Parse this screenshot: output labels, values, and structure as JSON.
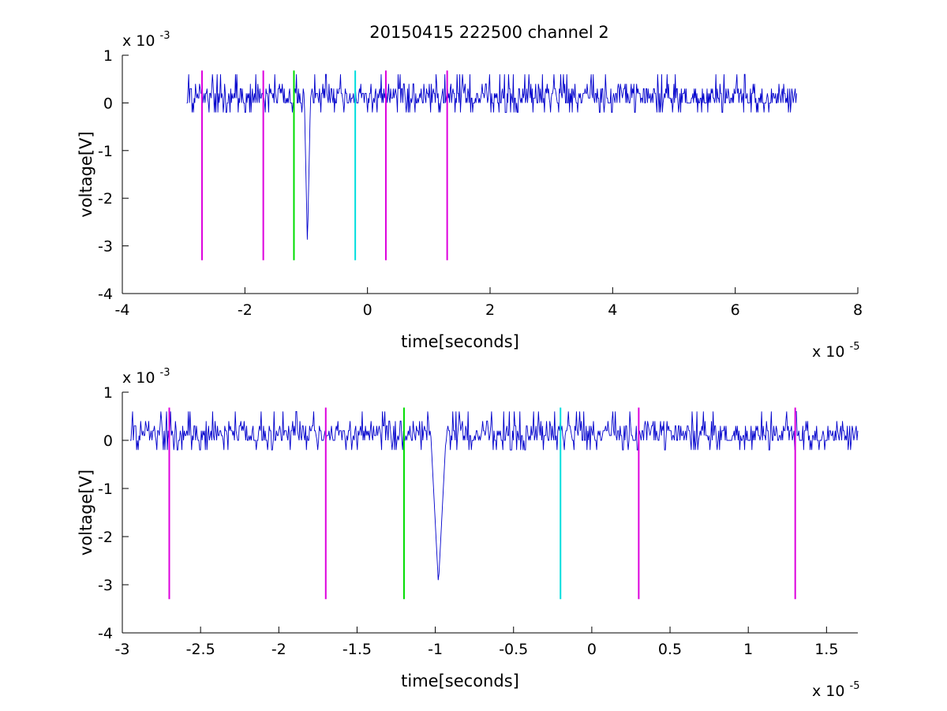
{
  "figure": {
    "title": "20150415 222500 channel 2"
  },
  "chart_data": [
    {
      "type": "line",
      "title": "20150415 222500 channel 2",
      "xlabel": "time[seconds]",
      "ylabel": "voltage[V]",
      "xlim": [
        -4e-05,
        8e-05
      ],
      "ylim": [
        -0.004,
        0.001
      ],
      "x_ticks": [
        -4,
        -2,
        0,
        2,
        4,
        6,
        8
      ],
      "y_ticks": [
        -4,
        -3,
        -2,
        -1,
        0,
        1
      ],
      "x_exponent": {
        "base": "x 10",
        "power": "-5"
      },
      "y_exponent": {
        "base": "x 10",
        "power": "-3"
      },
      "grid": false,
      "signal": {
        "color": "#0000cc",
        "t_start": -2.95e-05,
        "t_end": 7e-05,
        "baseline": 0.0001,
        "noise_amplitude": 0.0003,
        "spike": {
          "time": -9.8e-06,
          "min_value": -0.003
        }
      },
      "markers": [
        {
          "time": -2.7e-05,
          "color": "#dd00dd",
          "ymin": -0.0033,
          "ymax": 0.00068
        },
        {
          "time": -1.7e-05,
          "color": "#dd00dd",
          "ymin": -0.0033,
          "ymax": 0.00068
        },
        {
          "time": -1.2e-05,
          "color": "#00dd00",
          "ymin": -0.0033,
          "ymax": 0.00068
        },
        {
          "time": -2e-06,
          "color": "#00dddd",
          "ymin": -0.0033,
          "ymax": 0.00068
        },
        {
          "time": 3e-06,
          "color": "#dd00dd",
          "ymin": -0.0033,
          "ymax": 0.00068
        },
        {
          "time": 1.3e-05,
          "color": "#dd00dd",
          "ymin": -0.0033,
          "ymax": 0.00068
        }
      ]
    },
    {
      "type": "line",
      "title": "",
      "xlabel": "time[seconds]",
      "ylabel": "voltage[V]",
      "xlim": [
        -3e-05,
        1.7e-05
      ],
      "ylim": [
        -0.004,
        0.001
      ],
      "x_ticks": [
        -3,
        -2.5,
        -2,
        -1.5,
        -1,
        -0.5,
        0,
        0.5,
        1,
        1.5
      ],
      "y_ticks": [
        -4,
        -3,
        -2,
        -1,
        0,
        1
      ],
      "x_exponent": {
        "base": "x 10",
        "power": "-5"
      },
      "y_exponent": {
        "base": "x 10",
        "power": "-3"
      },
      "grid": false,
      "signal": {
        "color": "#0000cc",
        "t_start": -2.95e-05,
        "t_end": 1.7e-05,
        "baseline": 0.0002,
        "noise_amplitude": 0.0003,
        "spike": {
          "time": -9.8e-06,
          "min_value": -0.003
        }
      },
      "markers": [
        {
          "time": -2.7e-05,
          "color": "#dd00dd",
          "ymin": -0.0033,
          "ymax": 0.00068
        },
        {
          "time": -1.7e-05,
          "color": "#dd00dd",
          "ymin": -0.0033,
          "ymax": 0.00068
        },
        {
          "time": -1.2e-05,
          "color": "#00dd00",
          "ymin": -0.0033,
          "ymax": 0.00068
        },
        {
          "time": -2e-06,
          "color": "#00dddd",
          "ymin": -0.0033,
          "ymax": 0.00068
        },
        {
          "time": 3e-06,
          "color": "#dd00dd",
          "ymin": -0.0033,
          "ymax": 0.00068
        },
        {
          "time": 1.3e-05,
          "color": "#dd00dd",
          "ymin": -0.0033,
          "ymax": 0.00068
        }
      ]
    }
  ]
}
